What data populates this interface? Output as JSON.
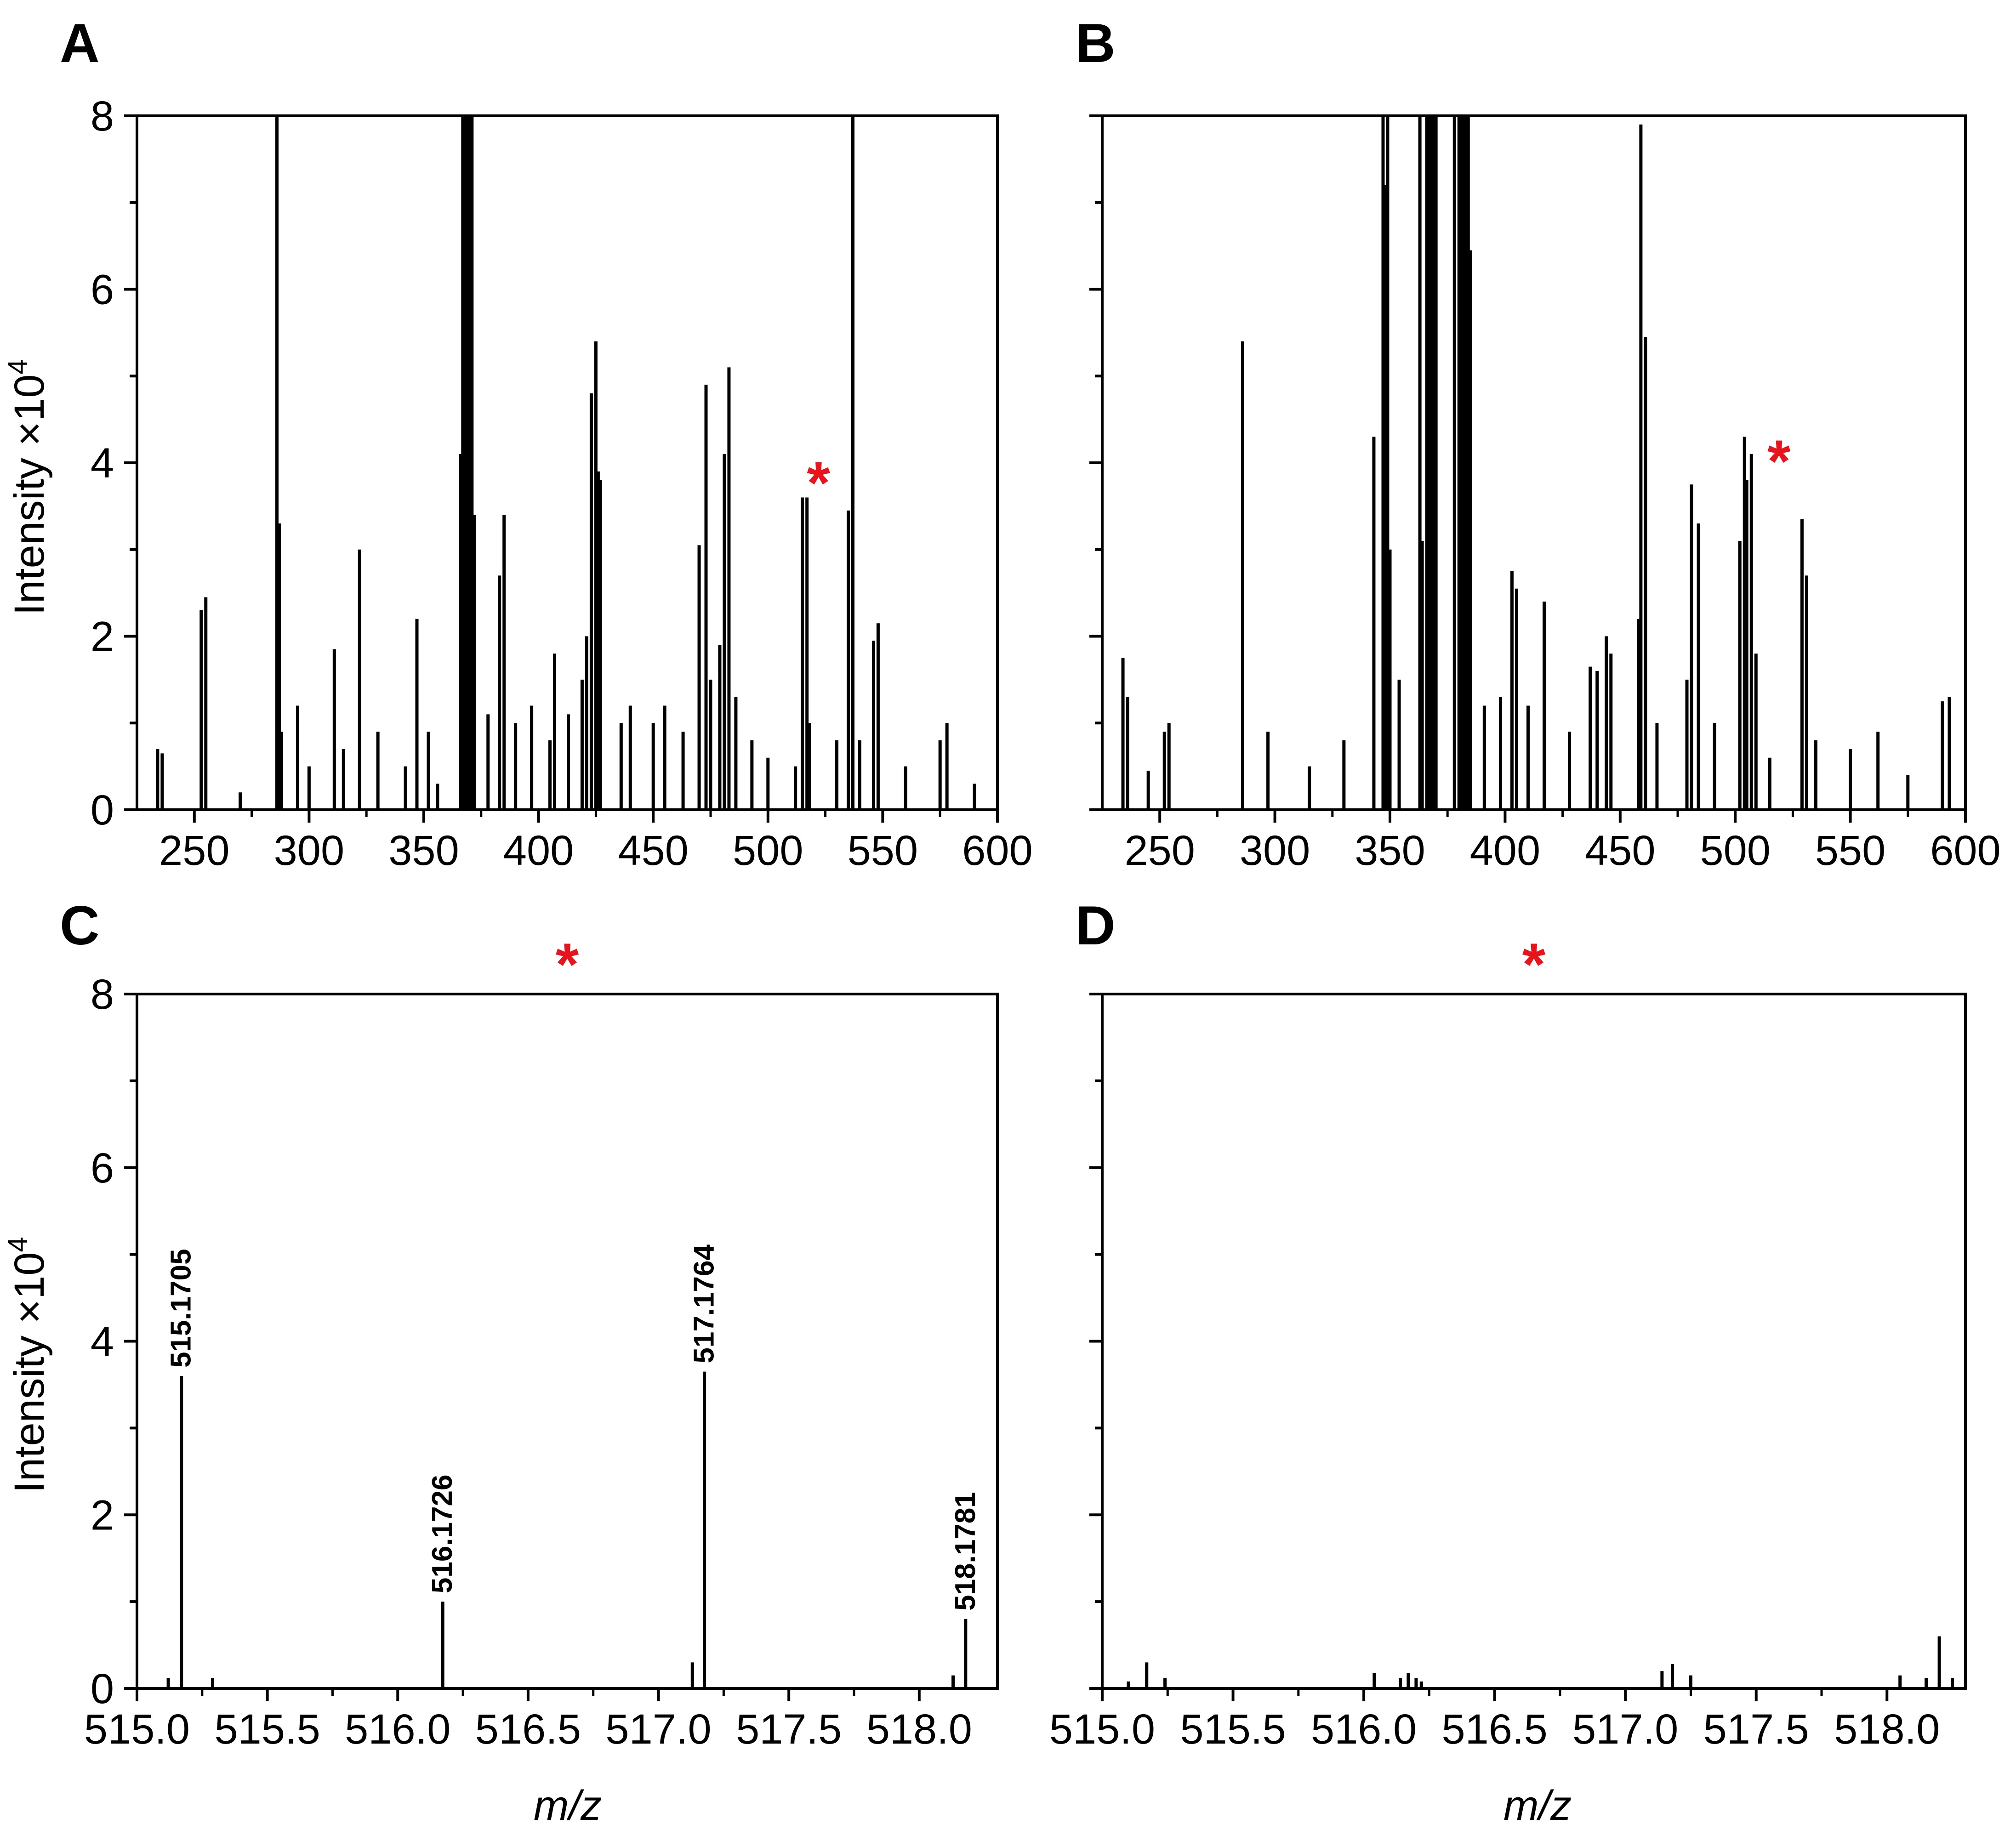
{
  "chart_data": [
    {
      "panel": "A",
      "type": "bar",
      "xlabel": "",
      "ylabel": "Intensity ×10",
      "ylabel_sup": "4",
      "xlim": [
        225,
        600
      ],
      "ylim": [
        0,
        8
      ],
      "xticks": [
        250,
        300,
        350,
        400,
        450,
        500,
        550,
        600
      ],
      "yticks": [
        0,
        2,
        4,
        6,
        8
      ],
      "marker": {
        "symbol": "*",
        "x": 517,
        "y": 3.85
      },
      "peaks": [
        {
          "x": 234,
          "y": 0.7
        },
        {
          "x": 236,
          "y": 0.65
        },
        {
          "x": 253,
          "y": 2.3
        },
        {
          "x": 255,
          "y": 2.45
        },
        {
          "x": 270,
          "y": 0.2
        },
        {
          "x": 286,
          "y": 8.0
        },
        {
          "x": 287,
          "y": 3.3
        },
        {
          "x": 288,
          "y": 0.9
        },
        {
          "x": 295,
          "y": 1.2
        },
        {
          "x": 300,
          "y": 0.5
        },
        {
          "x": 311,
          "y": 1.85
        },
        {
          "x": 315,
          "y": 0.7
        },
        {
          "x": 322,
          "y": 3.0
        },
        {
          "x": 330,
          "y": 0.9
        },
        {
          "x": 342,
          "y": 0.5
        },
        {
          "x": 347,
          "y": 2.2
        },
        {
          "x": 352,
          "y": 0.9
        },
        {
          "x": 356,
          "y": 0.3
        },
        {
          "x": 366,
          "y": 4.1
        },
        {
          "x": 367,
          "y": 8.0
        },
        {
          "x": 368,
          "y": 8.0
        },
        {
          "x": 369,
          "y": 8.0
        },
        {
          "x": 370,
          "y": 8.0
        },
        {
          "x": 371,
          "y": 8.0
        },
        {
          "x": 372,
          "y": 3.4
        },
        {
          "x": 378,
          "y": 1.1
        },
        {
          "x": 383,
          "y": 2.7
        },
        {
          "x": 385,
          "y": 3.4
        },
        {
          "x": 390,
          "y": 1.0
        },
        {
          "x": 397,
          "y": 1.2
        },
        {
          "x": 405,
          "y": 0.8
        },
        {
          "x": 407,
          "y": 1.8
        },
        {
          "x": 413,
          "y": 1.1
        },
        {
          "x": 419,
          "y": 1.5
        },
        {
          "x": 421,
          "y": 2.0
        },
        {
          "x": 423,
          "y": 4.8
        },
        {
          "x": 425,
          "y": 5.4
        },
        {
          "x": 426,
          "y": 3.9
        },
        {
          "x": 427,
          "y": 3.8
        },
        {
          "x": 436,
          "y": 1.0
        },
        {
          "x": 440,
          "y": 1.2
        },
        {
          "x": 450,
          "y": 1.0
        },
        {
          "x": 455,
          "y": 1.2
        },
        {
          "x": 463,
          "y": 0.9
        },
        {
          "x": 470,
          "y": 3.05
        },
        {
          "x": 473,
          "y": 4.9
        },
        {
          "x": 475,
          "y": 1.5
        },
        {
          "x": 479,
          "y": 1.9
        },
        {
          "x": 481,
          "y": 4.1
        },
        {
          "x": 483,
          "y": 5.1
        },
        {
          "x": 486,
          "y": 1.3
        },
        {
          "x": 493,
          "y": 0.8
        },
        {
          "x": 500,
          "y": 0.6
        },
        {
          "x": 512,
          "y": 0.5
        },
        {
          "x": 515,
          "y": 3.6
        },
        {
          "x": 517,
          "y": 3.6
        },
        {
          "x": 518,
          "y": 1.0
        },
        {
          "x": 530,
          "y": 0.8
        },
        {
          "x": 535,
          "y": 3.45
        },
        {
          "x": 537,
          "y": 8.0
        },
        {
          "x": 540,
          "y": 0.8
        },
        {
          "x": 546,
          "y": 1.95
        },
        {
          "x": 548,
          "y": 2.15
        },
        {
          "x": 560,
          "y": 0.5
        },
        {
          "x": 575,
          "y": 0.8
        },
        {
          "x": 578,
          "y": 1.0
        },
        {
          "x": 590,
          "y": 0.3
        }
      ]
    },
    {
      "panel": "B",
      "type": "bar",
      "xlabel": "",
      "ylabel": "",
      "xlim": [
        225,
        600
      ],
      "ylim": [
        0,
        8
      ],
      "xticks": [
        250,
        300,
        350,
        400,
        450,
        500,
        550,
        600
      ],
      "yticks": [
        0,
        2,
        4,
        6,
        8
      ],
      "marker": {
        "symbol": "*",
        "x": 514,
        "y": 4.1
      },
      "peaks": [
        {
          "x": 234,
          "y": 1.75
        },
        {
          "x": 236,
          "y": 1.3
        },
        {
          "x": 245,
          "y": 0.45
        },
        {
          "x": 252,
          "y": 0.9
        },
        {
          "x": 254,
          "y": 1.0
        },
        {
          "x": 286,
          "y": 5.4
        },
        {
          "x": 297,
          "y": 0.9
        },
        {
          "x": 315,
          "y": 0.5
        },
        {
          "x": 330,
          "y": 0.8
        },
        {
          "x": 343,
          "y": 4.3
        },
        {
          "x": 347,
          "y": 8.0
        },
        {
          "x": 348,
          "y": 7.2
        },
        {
          "x": 349,
          "y": 8.0
        },
        {
          "x": 350,
          "y": 3.0
        },
        {
          "x": 354,
          "y": 1.5
        },
        {
          "x": 363,
          "y": 8.0
        },
        {
          "x": 364,
          "y": 3.1
        },
        {
          "x": 366,
          "y": 8.0
        },
        {
          "x": 367,
          "y": 8.0
        },
        {
          "x": 368,
          "y": 8.0
        },
        {
          "x": 369,
          "y": 8.0
        },
        {
          "x": 370,
          "y": 8.0
        },
        {
          "x": 378,
          "y": 8.0
        },
        {
          "x": 380,
          "y": 8.0
        },
        {
          "x": 381,
          "y": 8.0
        },
        {
          "x": 382,
          "y": 8.0
        },
        {
          "x": 383,
          "y": 8.0
        },
        {
          "x": 384,
          "y": 8.0
        },
        {
          "x": 385,
          "y": 6.45
        },
        {
          "x": 391,
          "y": 1.2
        },
        {
          "x": 398,
          "y": 1.3
        },
        {
          "x": 403,
          "y": 2.75
        },
        {
          "x": 405,
          "y": 2.55
        },
        {
          "x": 410,
          "y": 1.2
        },
        {
          "x": 417,
          "y": 2.4
        },
        {
          "x": 428,
          "y": 0.9
        },
        {
          "x": 437,
          "y": 1.65
        },
        {
          "x": 440,
          "y": 1.6
        },
        {
          "x": 444,
          "y": 2.0
        },
        {
          "x": 446,
          "y": 1.8
        },
        {
          "x": 458,
          "y": 2.2
        },
        {
          "x": 459,
          "y": 7.9
        },
        {
          "x": 461,
          "y": 5.45
        },
        {
          "x": 466,
          "y": 1.0
        },
        {
          "x": 479,
          "y": 1.5
        },
        {
          "x": 481,
          "y": 3.75
        },
        {
          "x": 484,
          "y": 3.3
        },
        {
          "x": 491,
          "y": 1.0
        },
        {
          "x": 502,
          "y": 3.1
        },
        {
          "x": 504,
          "y": 4.3
        },
        {
          "x": 505,
          "y": 3.8
        },
        {
          "x": 507,
          "y": 4.1
        },
        {
          "x": 509,
          "y": 1.8
        },
        {
          "x": 515,
          "y": 0.6
        },
        {
          "x": 529,
          "y": 3.35
        },
        {
          "x": 531,
          "y": 2.7
        },
        {
          "x": 535,
          "y": 0.8
        },
        {
          "x": 550,
          "y": 0.7
        },
        {
          "x": 562,
          "y": 0.9
        },
        {
          "x": 575,
          "y": 0.4
        },
        {
          "x": 590,
          "y": 1.25
        },
        {
          "x": 593,
          "y": 1.3
        }
      ]
    },
    {
      "panel": "C",
      "type": "bar",
      "xlabel": "m/z",
      "ylabel": "Intensity ×10",
      "ylabel_sup": "4",
      "xlim": [
        515.0,
        518.3
      ],
      "ylim": [
        0,
        8
      ],
      "xticks": [
        "515.0",
        "515.5",
        "516.0",
        "516.5",
        "517.0",
        "517.5",
        "518.0"
      ],
      "yticks": [
        0,
        2,
        4,
        6,
        8
      ],
      "marker": {
        "symbol": "*"
      },
      "peaks": [
        {
          "x": 515.12,
          "y": 0.12
        },
        {
          "x": 515.1705,
          "y": 3.6,
          "label": "515.1705"
        },
        {
          "x": 515.29,
          "y": 0.12
        },
        {
          "x": 516.1726,
          "y": 1.0,
          "label": "516.1726"
        },
        {
          "x": 517.13,
          "y": 0.3
        },
        {
          "x": 517.1764,
          "y": 3.65,
          "label": "517.1764"
        },
        {
          "x": 518.13,
          "y": 0.15
        },
        {
          "x": 518.1781,
          "y": 0.8,
          "label": "518.1781"
        }
      ]
    },
    {
      "panel": "D",
      "type": "bar",
      "xlabel": "m/z",
      "ylabel": "",
      "xlim": [
        515.0,
        518.3
      ],
      "ylim": [
        0,
        8
      ],
      "xticks": [
        "515.0",
        "515.5",
        "516.0",
        "516.5",
        "517.0",
        "517.5",
        "518.0"
      ],
      "yticks": [
        0,
        2,
        4,
        6,
        8
      ],
      "marker": {
        "symbol": "*"
      },
      "peaks": [
        {
          "x": 515.1,
          "y": 0.08
        },
        {
          "x": 515.17,
          "y": 0.3
        },
        {
          "x": 515.24,
          "y": 0.12
        },
        {
          "x": 516.04,
          "y": 0.18
        },
        {
          "x": 516.14,
          "y": 0.12
        },
        {
          "x": 516.17,
          "y": 0.18
        },
        {
          "x": 516.2,
          "y": 0.12
        },
        {
          "x": 516.22,
          "y": 0.08
        },
        {
          "x": 517.14,
          "y": 0.2
        },
        {
          "x": 517.18,
          "y": 0.28
        },
        {
          "x": 517.25,
          "y": 0.15
        },
        {
          "x": 518.05,
          "y": 0.15
        },
        {
          "x": 518.15,
          "y": 0.12
        },
        {
          "x": 518.2,
          "y": 0.6
        },
        {
          "x": 518.25,
          "y": 0.12
        }
      ]
    }
  ]
}
